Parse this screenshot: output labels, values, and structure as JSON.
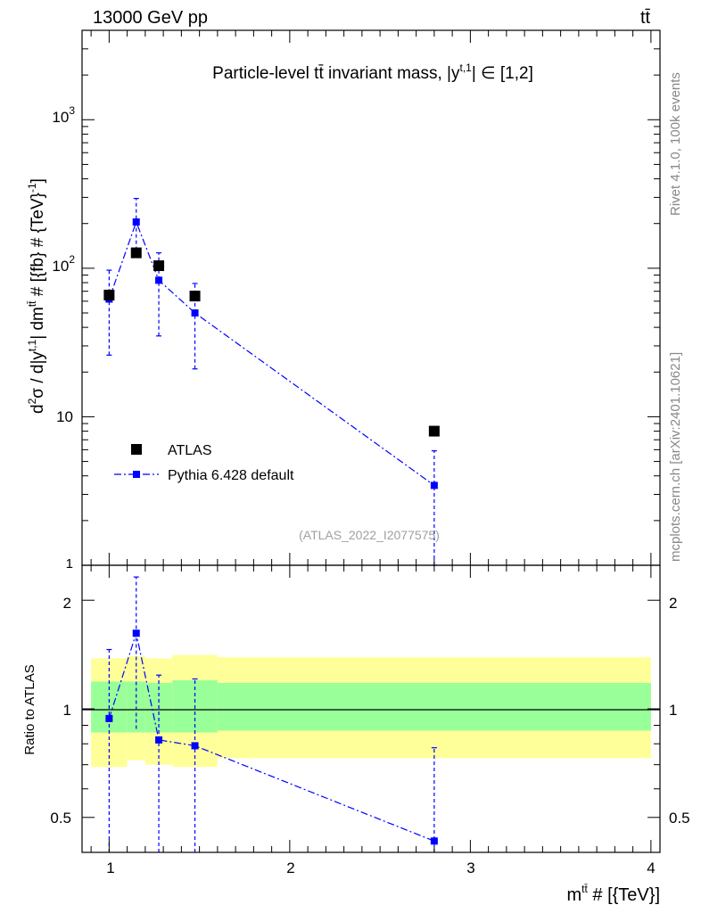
{
  "header": {
    "energy_label": "13000 GeV pp",
    "process_label": "tt̄"
  },
  "side_labels": {
    "rivet": "Rivet 4.1.0,  100k events",
    "mcplots": "mcplots.cern.ch [arXiv:2401.10621]"
  },
  "chart_data": [
    {
      "type": "scatter",
      "panel": "main",
      "title": "Particle-level tt̄ invariant mass, |y^{t,1}| ∈ [1,2]",
      "title_text": "Particle-level tt̄ invariant mass, |y",
      "title_sup": "t,1",
      "title_tail": "| ∈ [1,2]",
      "ylabel": "d²σ / d|y^{t,1}| dm^{tt̄} # [{fb} # {TeV}^{-1}]",
      "ylabel_parts": {
        "a": "d",
        "a_sup": "2",
        "b": "σ / d|y",
        "b_sup": "t,1",
        "c": "| dm",
        "c_sup": "tt̄",
        "d": " # [{fb} # {TeV}",
        "d_sup": "-1",
        "e": "]"
      },
      "yscale": "log",
      "ylim": [
        1,
        4000
      ],
      "xlim": [
        0.85,
        4.05
      ],
      "y_tick_labels": [
        "1",
        "10",
        "10",
        "10"
      ],
      "y_tick_sups": [
        "",
        "",
        "2",
        "3"
      ],
      "watermark": "(ATLAS_2022_I2077575)",
      "series": [
        {
          "name": "ATLAS",
          "x": [
            1.0,
            1.15,
            1.275,
            1.475,
            2.8
          ],
          "y": [
            66,
            127,
            104,
            65,
            8.0
          ],
          "color": "#000000",
          "marker": "square"
        },
        {
          "name": "Pythia 6.428 default",
          "x": [
            1.0,
            1.15,
            1.275,
            1.475,
            2.8
          ],
          "y": [
            62,
            205,
            83,
            50,
            3.45
          ],
          "yerr_low": [
            26,
            120,
            35,
            21,
            1.0
          ],
          "yerr_high": [
            97,
            295,
            127,
            79,
            5.9
          ],
          "color": "#0000ff",
          "marker": "square",
          "line": "dashdot"
        }
      ]
    },
    {
      "type": "scatter",
      "panel": "ratio",
      "ylabel": "Ratio to ATLAS",
      "xlabel": "m^{tt̄} # [{TeV}]",
      "xlabel_parts": {
        "a": "m",
        "a_sup": "tt̄",
        "b": " # [{TeV}]"
      },
      "yscale": "log",
      "ylim": [
        0.4,
        2.5
      ],
      "xlim": [
        0.85,
        4.05
      ],
      "x_ticks": [
        1,
        2,
        3,
        4
      ],
      "x_tick_labels": [
        "1",
        "2",
        "3",
        "4"
      ],
      "y_ticks": [
        0.5,
        1,
        2
      ],
      "y_tick_labels": [
        "0.5",
        "1",
        "2"
      ],
      "bands": {
        "edges": [
          0.9,
          1.1,
          1.2,
          1.35,
          1.6,
          4.0
        ],
        "yellow_low": [
          0.69,
          0.72,
          0.7,
          0.69,
          0.73
        ],
        "yellow_high": [
          1.38,
          1.4,
          1.38,
          1.41,
          1.39
        ],
        "green_low": [
          0.86,
          0.86,
          0.86,
          0.86,
          0.87
        ],
        "green_high": [
          1.19,
          1.19,
          1.18,
          1.2,
          1.18
        ]
      },
      "series": [
        {
          "name": "Pythia 6.428 default",
          "x": [
            1.0,
            1.15,
            1.275,
            1.475,
            2.8
          ],
          "y": [
            0.94,
            1.62,
            0.82,
            0.79,
            0.43
          ],
          "yerr_low": [
            0.4,
            0.88,
            0.4,
            0.4,
            0.38
          ],
          "yerr_high": [
            1.46,
            2.32,
            1.24,
            1.21,
            0.78
          ],
          "color": "#0000ff"
        }
      ]
    }
  ]
}
